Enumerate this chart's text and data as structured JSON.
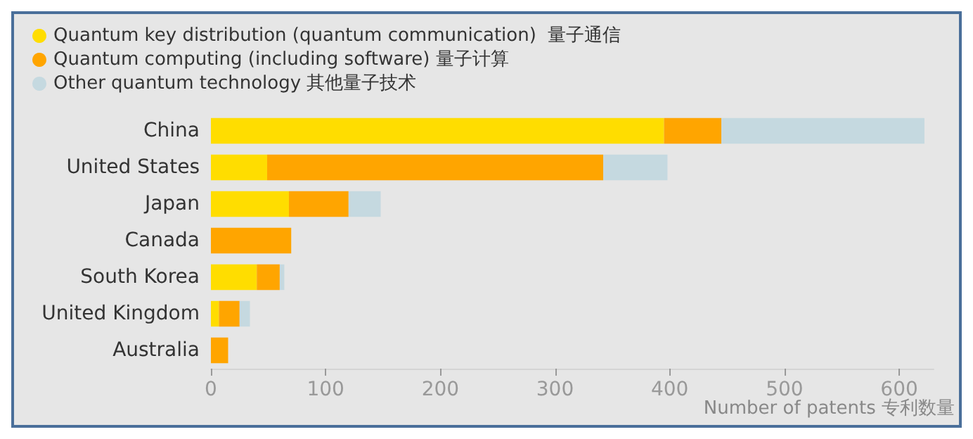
{
  "chart_data": {
    "type": "bar",
    "orientation": "horizontal",
    "stacked": true,
    "xlabel": "Number of patents 专利数量",
    "categories": [
      "China",
      "United States",
      "Japan",
      "Canada",
      "South Korea",
      "United Kingdom",
      "Australia"
    ],
    "series": [
      {
        "name": "Quantum key distribution (quantum communication)  量子通信",
        "color": "#ffdd00",
        "values": [
          395,
          49,
          68,
          0,
          40,
          7,
          0
        ]
      },
      {
        "name": "Quantum computing (including software) 量子计算",
        "color": "#ffa500",
        "values": [
          50,
          293,
          52,
          70,
          20,
          18,
          15
        ]
      },
      {
        "name": "Other quantum technology 其他量子技术",
        "color": "#c5d9e0",
        "values": [
          177,
          56,
          28,
          0,
          4,
          9,
          0
        ]
      }
    ],
    "xlim": [
      0,
      630
    ],
    "xticks": [
      0,
      100,
      200,
      300,
      400,
      500,
      600
    ],
    "grid": false,
    "legend": "top left"
  }
}
